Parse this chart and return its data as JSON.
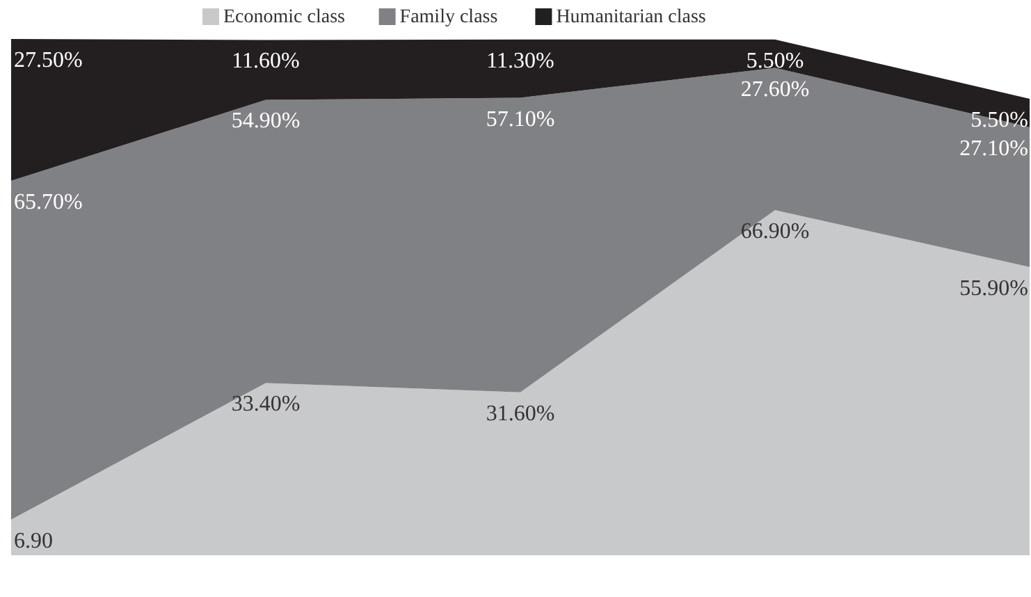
{
  "chart_data": {
    "type": "area",
    "stacked": true,
    "legend": "top",
    "data_labels": false,
    "categories": [
      null,
      null,
      null,
      null,
      null
    ],
    "series": [
      {
        "name": "Economic class",
        "color": "#c8c9cb",
        "values": [
          6.9,
          33.4,
          31.6,
          66.9,
          55.9
        ],
        "value_labels": [
          "6.90",
          "33.40%",
          "31.60%",
          "66.90%",
          "55.90%"
        ]
      },
      {
        "name": "Family class",
        "color": "#808184",
        "values": [
          65.7,
          54.9,
          57.1,
          27.6,
          27.1
        ],
        "value_labels": [
          "65.70%",
          "54.90%",
          "57.10%",
          "27.60%",
          "27.10%"
        ]
      },
      {
        "name": "Humanitarian class",
        "color": "#231f20",
        "values": [
          27.5,
          11.6,
          11.3,
          5.5,
          5.5
        ],
        "value_labels": [
          "27.50%",
          "11.60%",
          "11.30%",
          "5.50%",
          "5.50%"
        ]
      }
    ]
  }
}
